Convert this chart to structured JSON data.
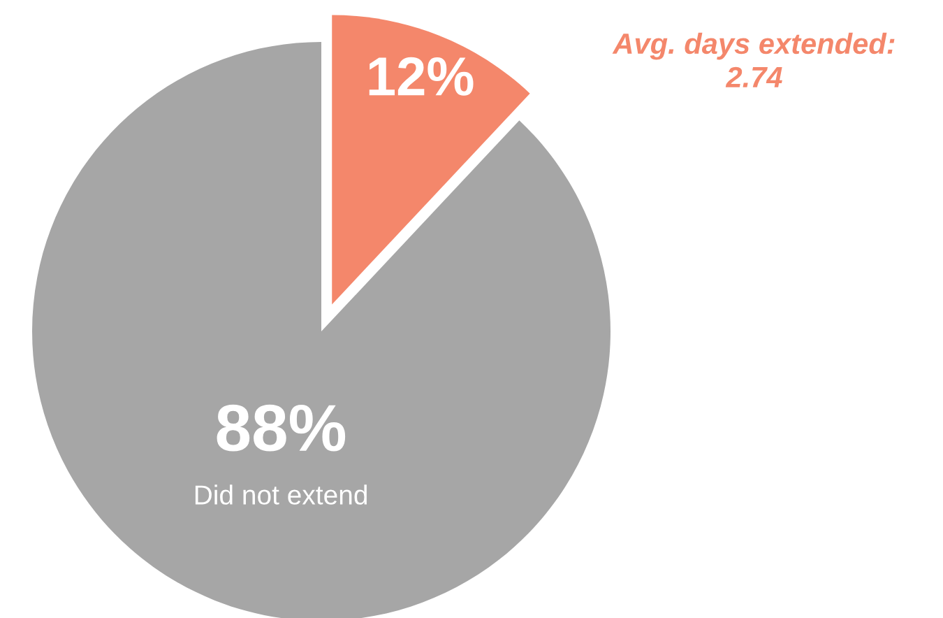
{
  "chart_data": {
    "type": "pie",
    "categories": [
      null,
      "Did not extend"
    ],
    "values": [
      12,
      88
    ],
    "colors": [
      "#f4876b",
      "#a6a6a6"
    ],
    "value_labels": [
      "12%",
      "88%"
    ],
    "annotations": [
      "Avg. days extended:\n2.74"
    ]
  }
}
